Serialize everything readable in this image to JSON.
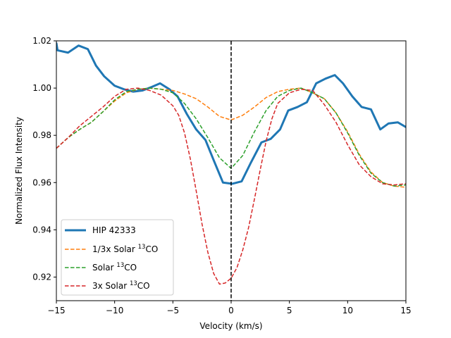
{
  "chart_data": {
    "type": "line",
    "title": "",
    "xlabel": "Velocity (km/s)",
    "ylabel": "Normalized Flux Intensity",
    "xlim": [
      -15,
      15
    ],
    "ylim": [
      0.91,
      1.02
    ],
    "xticks": [
      -15,
      -10,
      -5,
      0,
      5,
      10,
      15
    ],
    "xtick_labels": [
      "−15",
      "−10",
      "−5",
      "0",
      "5",
      "10",
      "15"
    ],
    "yticks": [
      0.92,
      0.94,
      0.96,
      0.98,
      1.0,
      1.02
    ],
    "ytick_labels": [
      "0.92",
      "0.94",
      "0.96",
      "0.98",
      "1.00",
      "1.02"
    ],
    "grid": false,
    "legend_position": "lower-left",
    "vline": {
      "x": 0,
      "style": "dashed",
      "color": "#000000"
    },
    "series": [
      {
        "name": "HIP 42333",
        "label_main": "HIP 42333",
        "label_sup": "",
        "label_tail": "",
        "style": "solid",
        "color": "#1f77b4",
        "width": 3,
        "x": [
          -15,
          -14.9,
          -14,
          -13.1,
          -12.3,
          -11.6,
          -10.9,
          -10,
          -9.2,
          -8.4,
          -7.6,
          -6.8,
          -6.1,
          -5.3,
          -4.6,
          -3.8,
          -3,
          -2.2,
          -1.5,
          -0.7,
          0.1,
          0.9,
          1.7,
          2.6,
          3.4,
          4.2,
          4.9,
          5.7,
          6.5,
          7.3,
          8.1,
          8.9,
          9.6,
          10.4,
          11.2,
          12,
          12.8,
          13.5,
          14.3,
          15
        ],
        "y": [
          1.019,
          1.016,
          1.015,
          1.018,
          1.0165,
          1.0095,
          1.005,
          1.001,
          0.9995,
          0.9985,
          0.999,
          1.0005,
          1.002,
          0.9995,
          0.9965,
          0.989,
          0.9825,
          0.978,
          0.9695,
          0.96,
          0.9595,
          0.9605,
          0.9685,
          0.977,
          0.9785,
          0.9825,
          0.9905,
          0.992,
          0.994,
          1.002,
          1.004,
          1.0055,
          1.002,
          0.9965,
          0.992,
          0.991,
          0.9825,
          0.985,
          0.9855,
          0.9835
        ]
      },
      {
        "name": "1/3x Solar 13CO",
        "label_main": "1/3x Solar ",
        "label_sup": "13",
        "label_tail": "CO",
        "style": "dashed",
        "color": "#ff7f0e",
        "width": 1.5,
        "x": [
          -15,
          -14,
          -13,
          -12,
          -11,
          -10,
          -9,
          -8,
          -7,
          -6,
          -5,
          -4,
          -3,
          -2,
          -1,
          0,
          1,
          2,
          3,
          4,
          5,
          6,
          7,
          8,
          9,
          10,
          11,
          12,
          13,
          14,
          15
        ],
        "y": [
          0.9745,
          0.979,
          0.9825,
          0.9855,
          0.99,
          0.9945,
          0.998,
          0.9995,
          1.0,
          0.9995,
          0.999,
          0.9975,
          0.9955,
          0.992,
          0.988,
          0.9865,
          0.9885,
          0.992,
          0.996,
          0.9985,
          0.9995,
          1.0,
          0.998,
          0.9955,
          0.9895,
          0.9815,
          0.972,
          0.9645,
          0.96,
          0.9585,
          0.958
        ]
      },
      {
        "name": "Solar 13CO",
        "label_main": "Solar ",
        "label_sup": "13",
        "label_tail": "CO",
        "style": "dashed",
        "color": "#2ca02c",
        "width": 1.5,
        "x": [
          -15,
          -14,
          -13,
          -12,
          -11,
          -10,
          -9,
          -8,
          -7,
          -6,
          -5,
          -4,
          -3,
          -2,
          -1,
          0,
          1,
          2,
          3,
          4,
          5,
          6,
          7,
          8,
          9,
          10,
          11,
          12,
          13,
          14,
          15
        ],
        "y": [
          0.9745,
          0.979,
          0.9825,
          0.9855,
          0.99,
          0.995,
          0.9985,
          0.9995,
          1.0,
          0.9995,
          0.998,
          0.9935,
          0.987,
          0.979,
          0.9705,
          0.966,
          0.9715,
          0.9815,
          0.9905,
          0.9965,
          0.999,
          1.0,
          0.998,
          0.9955,
          0.9895,
          0.981,
          0.9715,
          0.964,
          0.96,
          0.9585,
          0.959
        ]
      },
      {
        "name": "3x Solar 13CO",
        "label_main": "3x Solar ",
        "label_sup": "13",
        "label_tail": "CO",
        "style": "dashed",
        "color": "#d62728",
        "width": 1.5,
        "x": [
          -15,
          -14,
          -13,
          -12,
          -11,
          -10,
          -9,
          -8,
          -7,
          -6,
          -5,
          -4.5,
          -4,
          -3.5,
          -3,
          -2.5,
          -2,
          -1.5,
          -1,
          -0.5,
          0,
          0.5,
          1,
          1.5,
          2,
          2.5,
          3,
          3.5,
          4,
          5,
          6,
          7,
          8,
          9,
          10,
          11,
          12,
          13,
          14,
          15
        ],
        "y": [
          0.9745,
          0.979,
          0.984,
          0.988,
          0.992,
          0.9965,
          0.9995,
          1.0,
          0.999,
          0.997,
          0.9925,
          0.9885,
          0.981,
          0.97,
          0.9565,
          0.9425,
          0.9305,
          0.9215,
          0.917,
          0.9175,
          0.9195,
          0.924,
          0.9315,
          0.941,
          0.953,
          0.9655,
          0.9775,
          0.987,
          0.9935,
          0.998,
          0.9995,
          0.999,
          0.993,
          0.9855,
          0.976,
          0.9675,
          0.9625,
          0.9595,
          0.959,
          0.9595
        ]
      }
    ]
  }
}
